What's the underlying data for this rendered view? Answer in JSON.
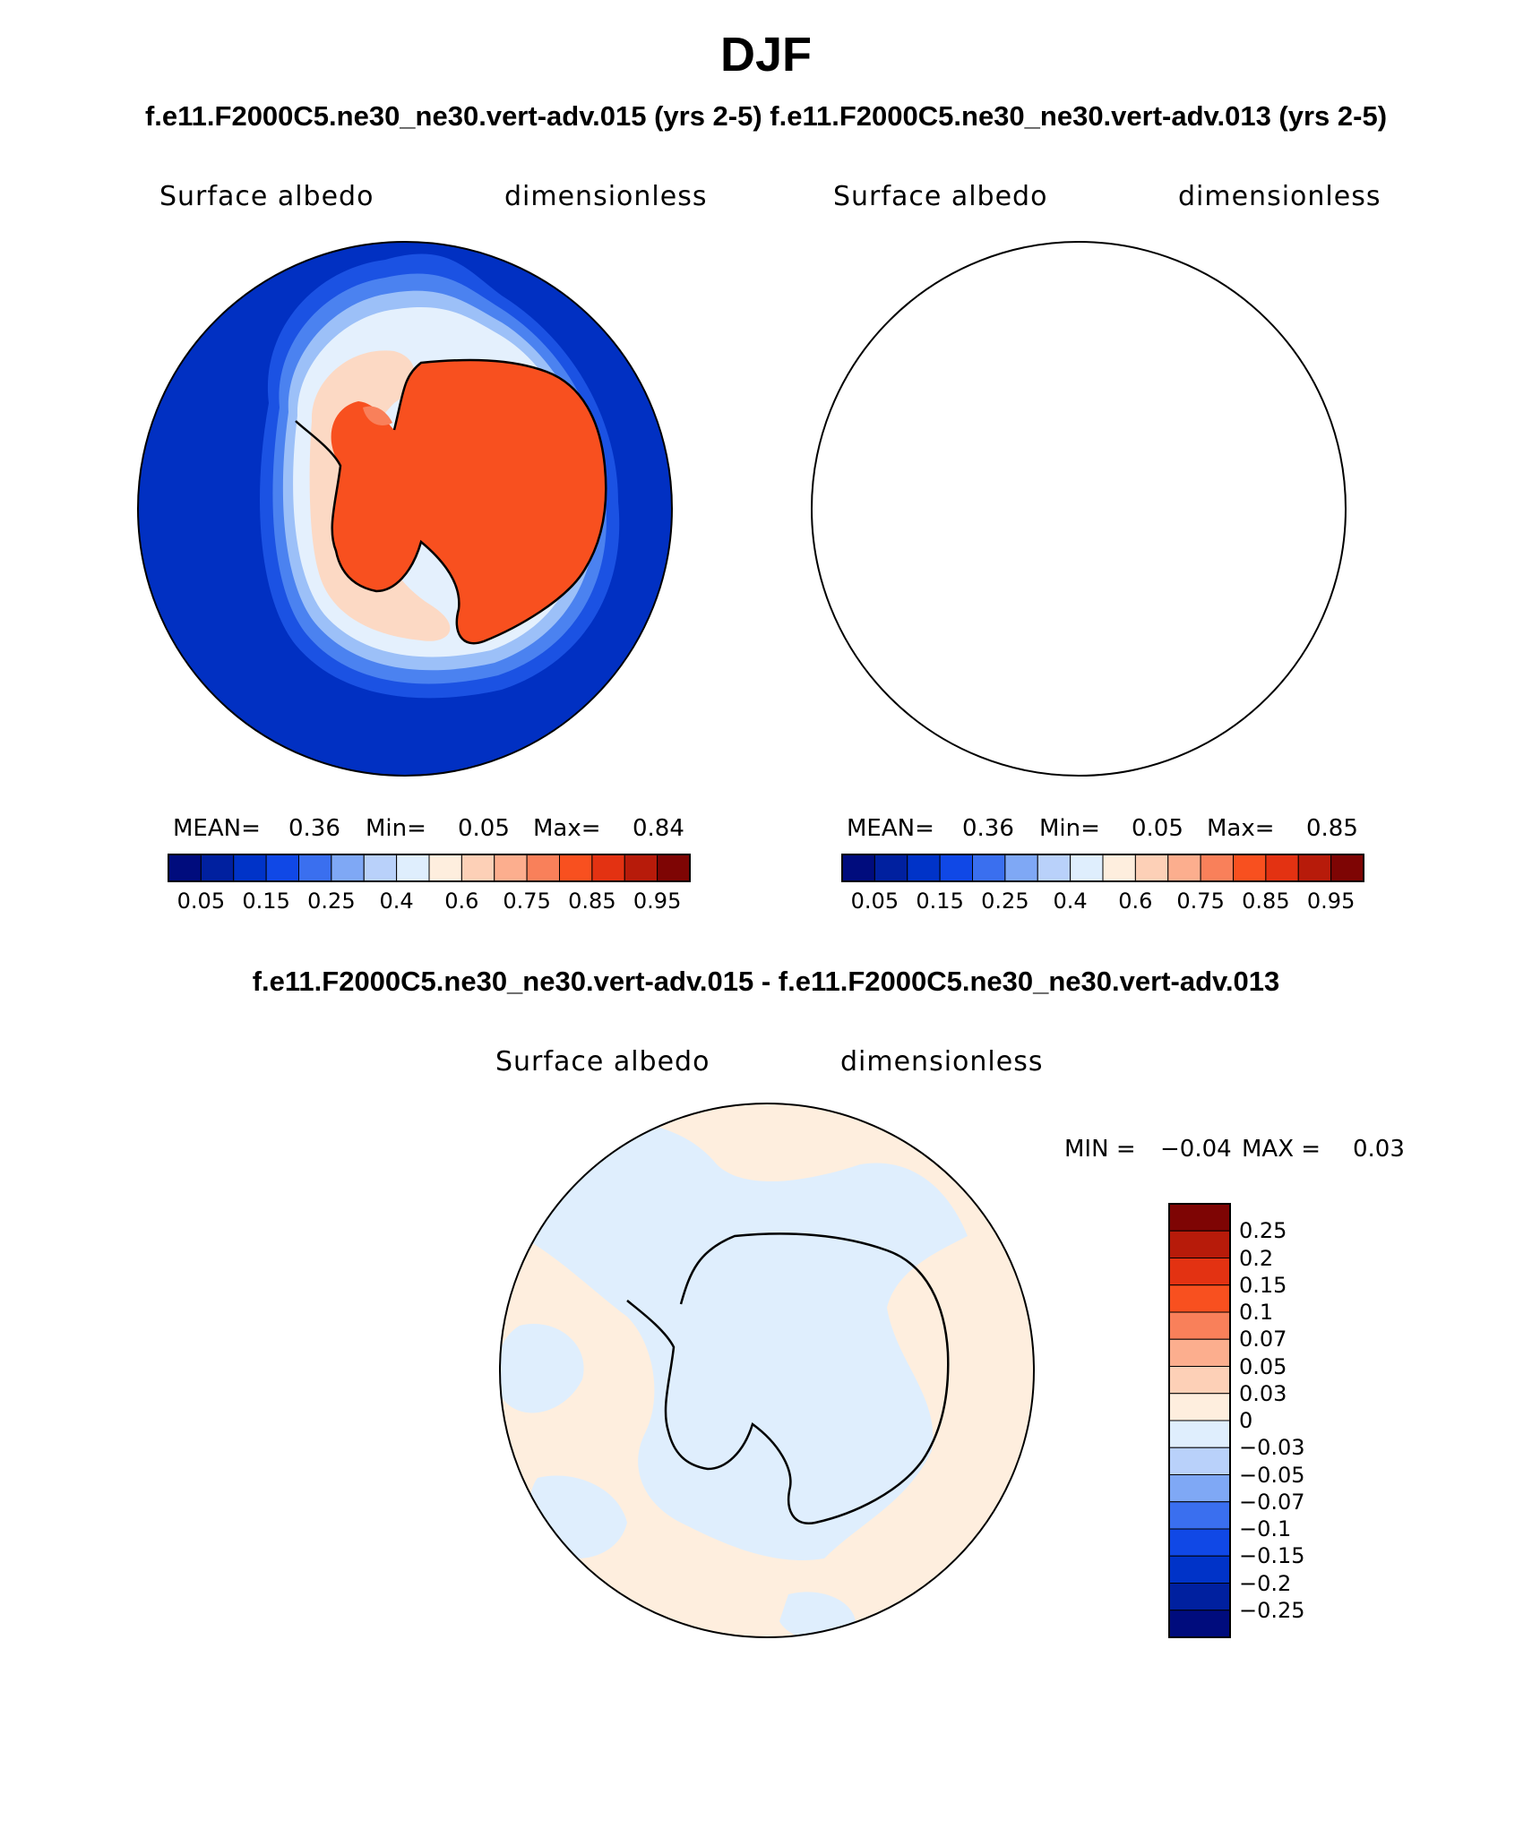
{
  "title": "DJF",
  "subtitle_top": "f.e11.F2000C5.ne30_ne30.vert-adv.015 (yrs 2-5)  f.e11.F2000C5.ne30_ne30.vert-adv.013 (yrs 2-5)",
  "subtitle_diff": "f.e11.F2000C5.ne30_ne30.vert-adv.015 - f.e11.F2000C5.ne30_ne30.vert-adv.013",
  "panels": [
    {
      "variable": "Surface albedo",
      "units": "dimensionless",
      "mean_label": "MEAN=",
      "mean": "0.36",
      "min_label": "Min=",
      "min": "0.05",
      "max_label": "Max=",
      "max": "0.84"
    },
    {
      "variable": "Surface albedo",
      "units": "dimensionless",
      "mean_label": "MEAN=",
      "mean": "0.36",
      "min_label": "Min=",
      "min": "0.05",
      "max_label": "Max=",
      "max": "0.85"
    },
    {
      "variable": "Surface albedo",
      "units": "dimensionless",
      "min_label": "MIN =",
      "min": "−0.04",
      "max_label": "MAX =",
      "max": "0.03"
    }
  ],
  "colorbar_abs": {
    "colors": [
      "#000c7d",
      "#00209f",
      "#0033c8",
      "#1048e6",
      "#3a6fef",
      "#7fa8f5",
      "#b9d1fa",
      "#dfeefd",
      "#feeede",
      "#fdd0b7",
      "#fcae8e",
      "#f9805a",
      "#f8501f",
      "#e33212",
      "#b71b0a",
      "#7e0504"
    ],
    "tick_labels": [
      "0.05",
      "0.15",
      "0.25",
      "0.4",
      "0.6",
      "0.75",
      "0.85",
      "0.95"
    ]
  },
  "colorbar_diff": {
    "colors": [
      "#7e0504",
      "#b71b0a",
      "#e33212",
      "#f8501f",
      "#f9805a",
      "#fcae8e",
      "#fdd0b7",
      "#feeede",
      "#dfeefd",
      "#b9d1fa",
      "#7fa8f5",
      "#3a6fef",
      "#1048e6",
      "#0033c8",
      "#00209f",
      "#000c7d"
    ],
    "tick_labels": [
      "0.25",
      "0.2",
      "0.15",
      "0.1",
      "0.07",
      "0.05",
      "0.03",
      "0",
      "−0.03",
      "−0.05",
      "−0.07",
      "−0.1",
      "−0.15",
      "−0.2",
      "−0.25"
    ]
  },
  "map_colors": {
    "ocean": "#0130c2",
    "ice_ring1": "#1b52e3",
    "ice_ring2": "#4b82f0",
    "ice_ring3": "#9cc0f8",
    "ice_ring4": "#e4f0fd",
    "shelf": "#fcd9c4",
    "land": "#f8501f",
    "land_light": "#f9805a",
    "diff_pos": "#feeede",
    "diff_neg": "#dfeefd",
    "coast": "#000000"
  }
}
